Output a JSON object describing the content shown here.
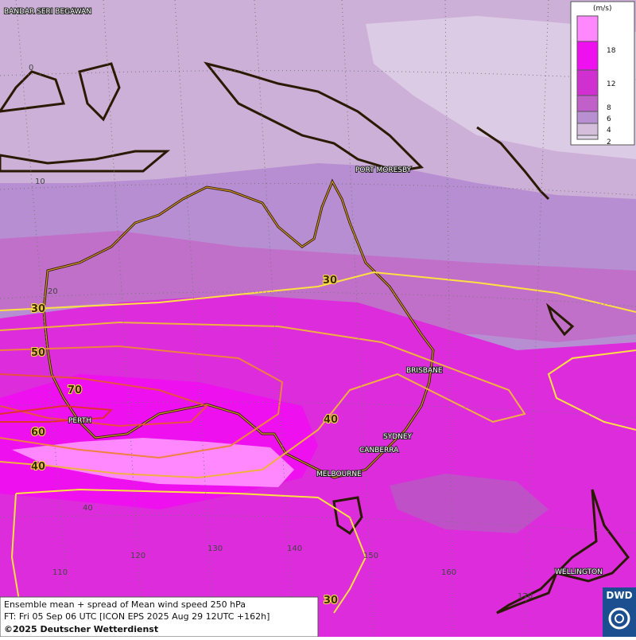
{
  "legend": {
    "unit": "(m/s)",
    "levels": [
      18,
      12,
      8,
      6,
      4,
      2
    ]
  },
  "places": [
    "BANDAR SERI BEGAWAN",
    "PORT MORESBY",
    "BRISBANE",
    "PERTH",
    "SYDNEY",
    "CANBERRA",
    "MELBOURNE",
    "WELLINGTON"
  ],
  "grid_labels": [
    "0",
    "10",
    "20",
    "40",
    "110",
    "120",
    "130",
    "140",
    "150",
    "160",
    "170"
  ],
  "contour_labels": [
    "30",
    "30",
    "50",
    "70",
    "60",
    "40",
    "40",
    "30"
  ],
  "caption": {
    "line1": "Ensemble mean + spread of Mean wind speed 250 hPa",
    "line2": "FT: Fri 05 Sep 06 UTC [ICON EPS 2025 Aug 29 12UTC +162h]",
    "line3": "©2025 Deutscher Wetterdienst"
  },
  "logo": "DWD"
}
